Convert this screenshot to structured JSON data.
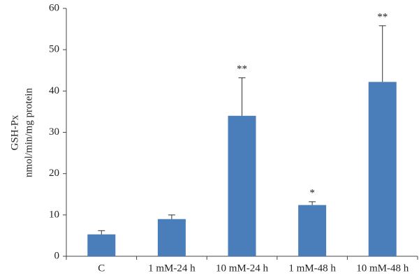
{
  "chart_data": {
    "type": "bar",
    "ylabel": [
      "GSH-Px",
      "nmol/min/mg protein"
    ],
    "categories": [
      "C",
      "1 mM-24 h",
      "10 mM-24 h",
      "1 mM-48 h",
      "10 mM-48 h"
    ],
    "values": [
      5.3,
      9.0,
      34.0,
      12.4,
      42.2
    ],
    "errors": [
      0.9,
      1.0,
      9.2,
      0.8,
      13.6
    ],
    "significance": [
      null,
      null,
      "**",
      "*",
      "**"
    ],
    "color": "#4a7ebb",
    "ylim": [
      0,
      60
    ],
    "yticks": [
      0,
      10,
      20,
      30,
      40,
      50,
      60
    ],
    "grid": false
  }
}
